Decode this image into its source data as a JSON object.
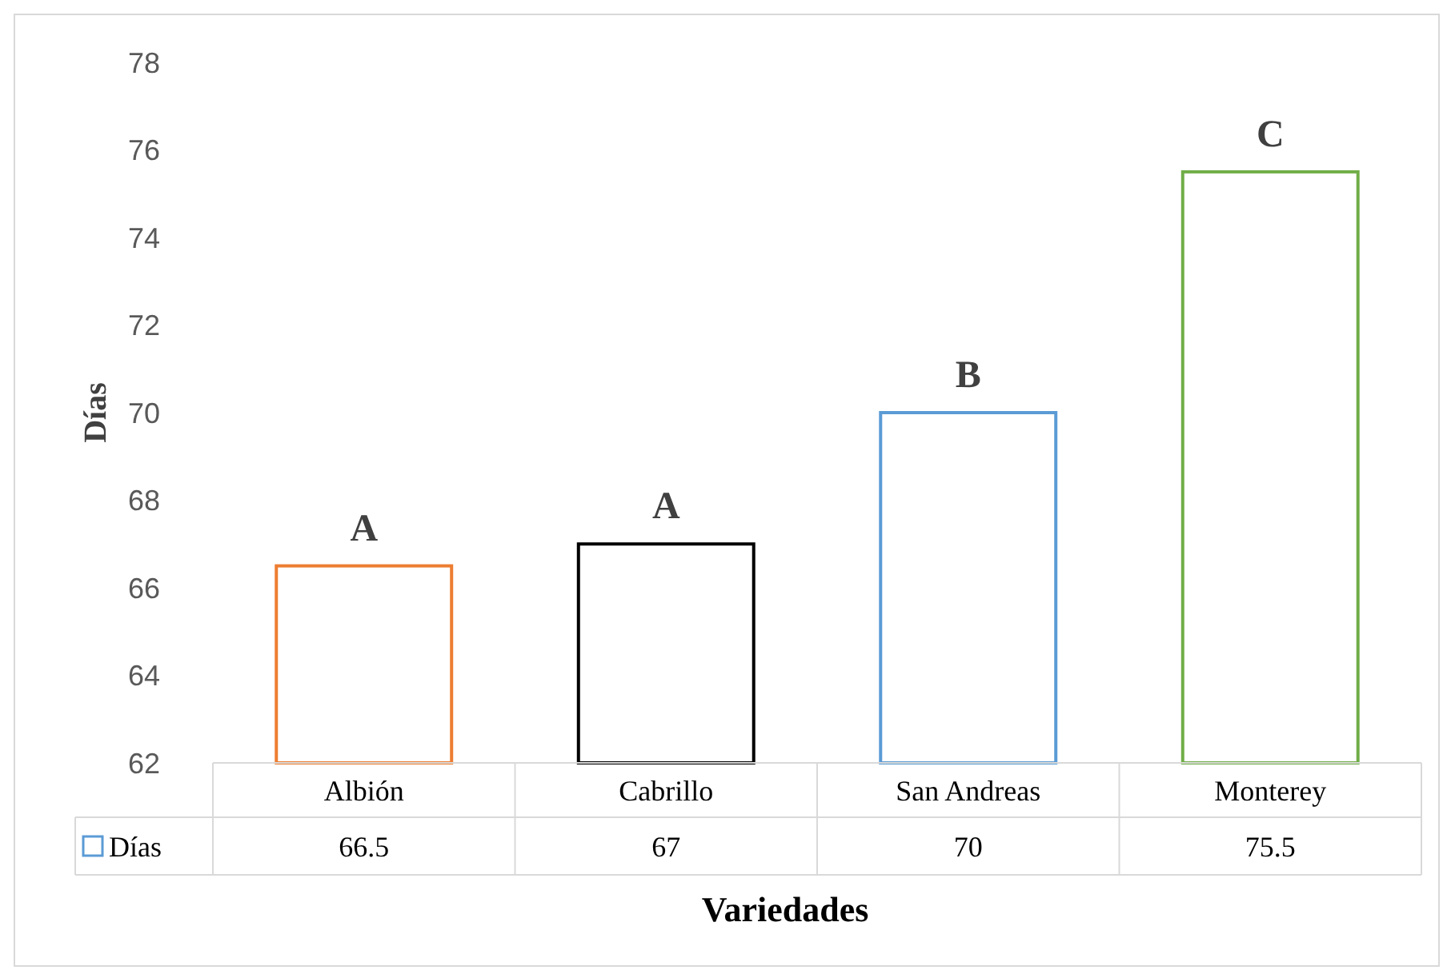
{
  "chart_data": {
    "type": "bar",
    "xlabel": "Variedades",
    "ylabel": "Días",
    "categories": [
      "Albión",
      "Cabrillo",
      "San Andreas",
      "Monterey"
    ],
    "series": [
      {
        "name": "Días",
        "color": "#5b9bd5",
        "colors": [
          "#ed7d31",
          "#000000",
          "#5b9bd5",
          "#70ad47"
        ],
        "values": [
          66.5,
          67,
          70,
          75.5
        ]
      }
    ],
    "ylim": [
      62,
      78
    ],
    "yticks": [
      62,
      64,
      66,
      68,
      70,
      72,
      74,
      76,
      78
    ],
    "grid": false,
    "legend": "bottom",
    "data_labels": true,
    "annotations": [
      "A",
      "A",
      "B",
      "C"
    ]
  }
}
